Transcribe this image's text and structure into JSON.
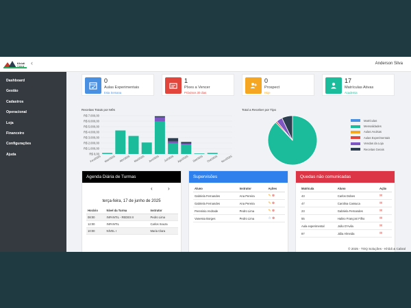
{
  "app": {
    "user_name": "Anderson Silva"
  },
  "sidebar": {
    "items": [
      "Dashboard",
      "Gestão",
      "Cadastros",
      "Operacional",
      "Loja",
      "Financeiro",
      "Configurações",
      "Ajuda"
    ]
  },
  "cards": [
    {
      "value": "0",
      "label": "Aulas Experimentais",
      "sub": "Esta Semana",
      "color": "#4a90e2",
      "sub_color": "#4a90e2",
      "icon": "calendar-icon"
    },
    {
      "value": "1",
      "label": "PIxes a Vencer",
      "sub": "Próximos 30 dias",
      "color": "#e2453c",
      "sub_color": "#e2453c",
      "icon": "bill-icon"
    },
    {
      "value": "0",
      "label": "Prospect",
      "sub": "Hoje",
      "color": "#f5a623",
      "sub_color": "#f5a623",
      "icon": "user-plus-icon"
    },
    {
      "value": "17",
      "label": "Matrículas Ativas",
      "sub": "Academia",
      "color": "#1abc9c",
      "sub_color": "#1abc9c",
      "icon": "user-icon"
    }
  ],
  "chart_data": [
    {
      "type": "bar",
      "title": "Receitas Totais por Mês",
      "categories": [
        "Fev/2025",
        "Mar/2025",
        "Abr/2025",
        "Mai/2025",
        "Jun/2025",
        "Jul/2025",
        "Ago/2025",
        "Set/2025",
        "Out/2025",
        "Nov/2025"
      ],
      "x_tick_labels": [
        "Fev/2025",
        "",
        "Mar/2025",
        "",
        "Abr/2025",
        "",
        "Mai/2025",
        "",
        "Jun/2025",
        "",
        "Jul/2025",
        "",
        "Ago/2025",
        "",
        "Set/2025",
        "",
        "Out/2025",
        "",
        "Nov/2025"
      ],
      "y_ticks": [
        "R$ 0,00",
        "R$ 1.000,00",
        "R$ 2.000,00",
        "R$ 3.000,00",
        "R$ 4.000,00",
        "R$ 5.000,00",
        "R$ 6.000,00",
        "R$ 7.000,00"
      ],
      "ylim": [
        0,
        7000
      ],
      "series": [
        {
          "color": "#1abc9c",
          "values": [
            200,
            4300,
            3300,
            2100,
            5900,
            1900,
            1700,
            100,
            200,
            0
          ]
        },
        {
          "color": "#7e57c2",
          "values": [
            0,
            0,
            0,
            0,
            800,
            400,
            200,
            0,
            0,
            0
          ]
        },
        {
          "color": "#2c3e50",
          "values": [
            0,
            0,
            0,
            0,
            200,
            600,
            300,
            0,
            0,
            0
          ]
        }
      ]
    },
    {
      "type": "pie",
      "title": "Total a Receber por Tipo",
      "legend": [
        {
          "name": "Matrículas",
          "color": "#4a90e2"
        },
        {
          "name": "Mensalidades",
          "color": "#1abc9c"
        },
        {
          "name": "Aulas Avulsas",
          "color": "#f5a623"
        },
        {
          "name": "Aulas Experimentais",
          "color": "#e2453c"
        },
        {
          "name": "Vendas da Loja",
          "color": "#7e57c2"
        },
        {
          "name": "Receitas Gerais",
          "color": "#2c3e50"
        }
      ],
      "values": [
        0,
        88,
        0,
        1,
        4,
        7
      ]
    }
  ],
  "agenda": {
    "title": "Agenda Diária de Turmas",
    "date": "terça-feira, 17 de junho de 2025",
    "headers": [
      "Horário",
      "Nível da Turma",
      "Instrutor"
    ],
    "rows": [
      [
        "08:00",
        "INFANTIL - REDES II",
        "Pedro Lima"
      ],
      [
        "12:00",
        "INFANTIL",
        "Carlos Souza"
      ],
      [
        "10:00",
        "NÍVEL I",
        "Maria Clara"
      ]
    ]
  },
  "supervisoes": {
    "title": "Supervisões",
    "headers": [
      "Aluno",
      "Instrutor",
      "Ações"
    ],
    "rows": [
      [
        "Gabriela Fernandes",
        "Ana Pereira"
      ],
      [
        "Gabriela Fernandes",
        "Ana Pereira"
      ],
      [
        "Perenisio Andrade",
        "Pedro Lima"
      ],
      [
        "Vanessa Borges",
        "Pedro Lima"
      ]
    ]
  },
  "quedas": {
    "title": "Quedas não comunicadas",
    "headers": [
      "Matrícula",
      "Aluno",
      "Ação"
    ],
    "rows": [
      [
        "43",
        "Carlos Dobes"
      ],
      [
        "47",
        "Carolina Cassuca"
      ],
      [
        "23",
        "Gabriela Fernandes"
      ],
      [
        "55",
        "Halino Françoni Filho"
      ],
      [
        "Aula experimental",
        "João D'Avila"
      ],
      [
        "87",
        "Júlia Almeida"
      ]
    ]
  },
  "footer": "© 2025 - TOQ Soluções - Khôdi & Cabral"
}
